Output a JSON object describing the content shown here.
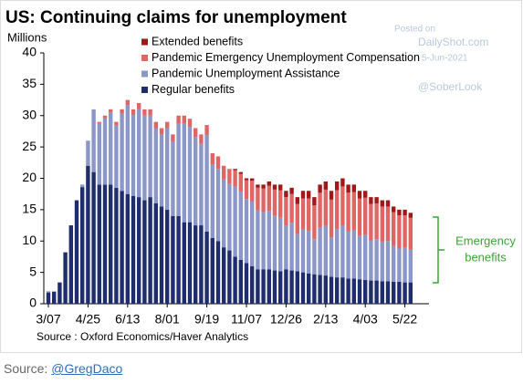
{
  "chart_data": {
    "type": "stacked_bar",
    "title": "US: Continuing claims for unemployment",
    "y_label": "Millions",
    "watermark": [
      "Posted on",
      "DailyShot.com",
      "5-Jun-2021",
      "@SoberLook"
    ],
    "annotation": {
      "lines": [
        "Emergency",
        "benefits"
      ],
      "color": "#3aa335"
    },
    "source": "Source : Oxford Economics/Haver Analytics",
    "ylim": [
      0,
      40
    ],
    "yticks": [
      0,
      5,
      10,
      15,
      20,
      25,
      30,
      35,
      40
    ],
    "categories": [
      "3/07",
      null,
      null,
      null,
      null,
      null,
      null,
      "4/25",
      null,
      null,
      null,
      null,
      null,
      null,
      "6/13",
      null,
      null,
      null,
      null,
      null,
      null,
      "8/01",
      null,
      null,
      null,
      null,
      null,
      null,
      "9/19",
      null,
      null,
      null,
      null,
      null,
      null,
      "11/07",
      null,
      null,
      null,
      null,
      null,
      null,
      "12/26",
      null,
      null,
      null,
      null,
      null,
      null,
      "2/13",
      null,
      null,
      null,
      null,
      null,
      null,
      "4/03",
      null,
      null,
      null,
      null,
      null,
      null,
      "5/22",
      null
    ],
    "series": [
      {
        "name": "Extended benefits",
        "color": "#a01818",
        "values": [
          0,
          0,
          0,
          0,
          0,
          0,
          0,
          0,
          0,
          0,
          0,
          0,
          0,
          0,
          0,
          0,
          0,
          0,
          0,
          0,
          0,
          0,
          0,
          0,
          0,
          0,
          0,
          0,
          0,
          0,
          0,
          0,
          0,
          0.2,
          0.3,
          0.3,
          0.4,
          0.5,
          0.6,
          0.7,
          0.8,
          0.9,
          1,
          1,
          1.1,
          1.2,
          1.2,
          1.3,
          1.3,
          1.3,
          1.4,
          1.4,
          1.3,
          1.3,
          1.2,
          1.2,
          1.1,
          1.1,
          1,
          1,
          1,
          0.9,
          0.9,
          0.9,
          0.8
        ]
      },
      {
        "name": "Pandemic Emergency Unemployment Compensation",
        "color": "#e06666",
        "values": [
          0,
          0,
          0,
          0,
          0,
          0,
          0,
          0,
          0,
          0.3,
          0.4,
          0.5,
          0.6,
          0.7,
          0.8,
          0.9,
          1,
          1,
          1,
          1,
          1,
          1,
          1.1,
          1.2,
          1.2,
          1.3,
          1.4,
          1.5,
          1.6,
          1.8,
          2,
          2.2,
          2.4,
          2.6,
          2.8,
          3,
          3.3,
          3.6,
          3.8,
          4,
          4.2,
          4.4,
          4.5,
          4.6,
          4.8,
          5,
          5.2,
          5.4,
          5.6,
          5.8,
          6,
          6.2,
          6.3,
          6.2,
          6.1,
          6,
          5.9,
          5.8,
          5.7,
          5.6,
          5.5,
          5.4,
          5.3,
          5.2,
          5.1
        ]
      },
      {
        "name": "Pandemic Unemployment Assistance",
        "color": "#8a97c8",
        "values": [
          0.2,
          0.1,
          0,
          0,
          0,
          0,
          0.4,
          4,
          10,
          9.7,
          10.6,
          11.5,
          9.9,
          12.3,
          14.2,
          12.9,
          14,
          13.5,
          13,
          12,
          11.5,
          13,
          11.9,
          14.8,
          15.8,
          15.2,
          14.1,
          13,
          15.4,
          11.7,
          11.5,
          10.8,
          10.6,
          11.2,
          10.9,
          10.2,
          10.3,
          9.4,
          9.1,
          9.3,
          8.7,
          8.5,
          7,
          7.6,
          5.9,
          6.8,
          6.8,
          5.6,
          7.5,
          7.9,
          6.3,
          7.7,
          8.2,
          7.5,
          7.7,
          6.9,
          7.2,
          6.4,
          6.6,
          6.3,
          6.4,
          5.7,
          5.3,
          5.5,
          5.2
        ]
      },
      {
        "name": "Regular benefits",
        "color": "#1f2d6e",
        "values": [
          1.8,
          1.9,
          3.4,
          8.2,
          12.5,
          16.5,
          18.6,
          22,
          21,
          19,
          19,
          19,
          18.5,
          18,
          17.5,
          17.2,
          17,
          16.5,
          17,
          16,
          15.5,
          15,
          14,
          14,
          13,
          13,
          12.5,
          12.5,
          11.5,
          10.5,
          10,
          9,
          8.5,
          7.5,
          7,
          6.5,
          6,
          5.5,
          5.5,
          5.5,
          5.3,
          5.2,
          5.5,
          5.3,
          5.2,
          5,
          4.8,
          4.7,
          4.6,
          4.5,
          4.3,
          4.2,
          4.2,
          4,
          4,
          3.9,
          3.8,
          3.7,
          3.7,
          3.6,
          3.6,
          3.5,
          3.5,
          3.4,
          3.4
        ]
      }
    ]
  },
  "footer": {
    "label": "Source:",
    "link": "@GregDaco"
  }
}
